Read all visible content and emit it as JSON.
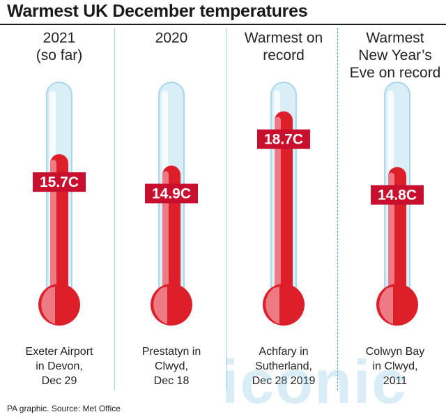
{
  "title": "Warmest UK December temperatures",
  "source": "PA graphic. Source: Met Office",
  "watermark": "iconic",
  "colors": {
    "mercury": "#dd1f2a",
    "mercury_light": "#ee7b83",
    "tube": "#daeef8",
    "tube_stroke": "#aad6ec",
    "label_bg": "#c8102e",
    "divider": "#a8d4ea"
  },
  "chart_data": {
    "type": "bar",
    "unit": "C",
    "categories": [
      "2021 (so far)",
      "2020",
      "Warmest on record",
      "Warmest New Year's Eve on record"
    ],
    "values": [
      15.7,
      14.9,
      18.7,
      14.8
    ],
    "columns": [
      {
        "heading": [
          "2021",
          "(so far)"
        ],
        "value": 15.7,
        "label": "15.7C",
        "place": [
          "Exeter Airport",
          "in Devon,",
          "Dec 29"
        ]
      },
      {
        "heading": [
          "2020"
        ],
        "value": 14.9,
        "label": "14.9C",
        "place": [
          "Prestatyn in",
          "Clwyd,",
          "Dec 18"
        ]
      },
      {
        "heading": [
          "Warmest on",
          "record"
        ],
        "value": 18.7,
        "label": "18.7C",
        "place": [
          "Achfary in",
          "Sutherland,",
          "Dec 28 2019"
        ]
      },
      {
        "heading": [
          "Warmest",
          "New Year’s",
          "Eve on record"
        ],
        "value": 14.8,
        "label": "14.8C",
        "place": [
          "Colwyn Bay",
          "in Clwyd,",
          "2011"
        ]
      }
    ]
  }
}
